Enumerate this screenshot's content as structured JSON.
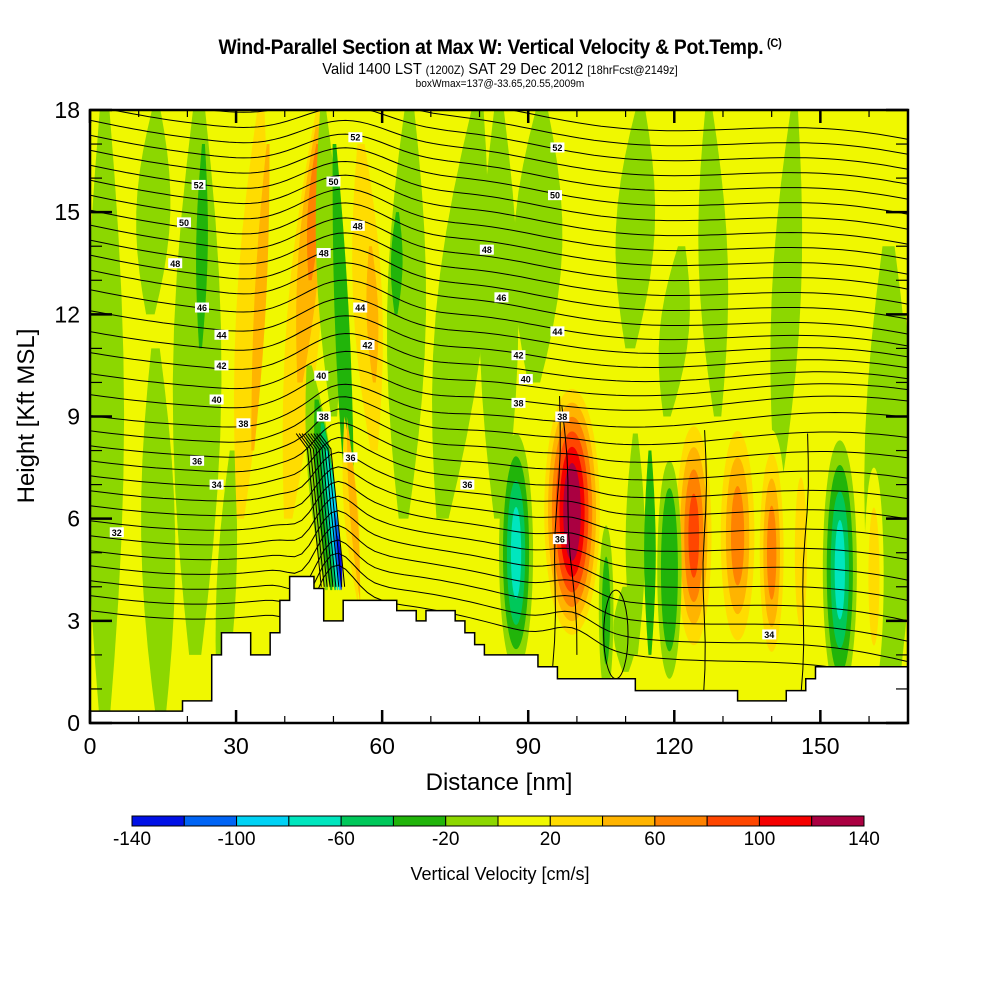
{
  "header": {
    "title": "Wind-Parallel Section at Max W: Vertical Velocity & Pot.Temp.",
    "copyright": "(C)",
    "valid_prefix": "Valid 1400 LST",
    "valid_utc": "(1200Z)",
    "valid_date": "SAT 29 Dec 2012",
    "forecast": "[18hrFcst@2149z]",
    "box_info": "boxWmax=137@-33.65,20.55,2009m"
  },
  "chart_data": {
    "type": "contour",
    "title": "Wind-Parallel Section at Max W: Vertical Velocity & Pot.Temp.",
    "xlabel": "Distance [nm]",
    "ylabel": "Height [Kft MSL]",
    "xlim": [
      0,
      168
    ],
    "ylim": [
      0,
      18
    ],
    "x_ticks": [
      0,
      30,
      60,
      90,
      120,
      150
    ],
    "x_minor_step": 10,
    "y_ticks": [
      0,
      3,
      6,
      9,
      12,
      15,
      18
    ],
    "y_minor_step": 1,
    "colorbar": {
      "title": "Vertical Velocity [cm/s]",
      "levels": [
        -140,
        -120,
        -100,
        -80,
        -60,
        -40,
        -20,
        0,
        20,
        40,
        60,
        80,
        100,
        120,
        140
      ],
      "tick_labels": [
        "-140",
        "-100",
        "-60",
        "-20",
        "20",
        "60",
        "100",
        "140"
      ],
      "colors": [
        "#0010e6",
        "#0064f5",
        "#00d2f5",
        "#00e6be",
        "#00c85a",
        "#21b40a",
        "#8cd700",
        "#f0f800",
        "#ffdc00",
        "#ffb400",
        "#ff8200",
        "#ff4600",
        "#f50000",
        "#aa0041"
      ],
      "placement": "bottom"
    },
    "filled_field": {
      "name": "Vertical Velocity",
      "units": "cm/s",
      "max_value": 137,
      "max_location_nm": 99,
      "max_height_kft": 6.5,
      "features": [
        {
          "kind": "updraft",
          "center_nm": 99,
          "height_kft": 6.5,
          "peak_cms": 137
        },
        {
          "kind": "downdraft",
          "center_nm": 51,
          "height_kft": 5,
          "peak_cms": -140
        },
        {
          "kind": "updraft",
          "center_nm": 47,
          "height_kft": 15,
          "peak_cms": 70
        },
        {
          "kind": "updraft",
          "center_nm": 124,
          "height_kft": 5.5,
          "peak_cms": 90
        },
        {
          "kind": "updraft",
          "center_nm": 133,
          "height_kft": 5.5,
          "peak_cms": 70
        },
        {
          "kind": "downdraft",
          "center_nm": 154,
          "height_kft": 4.5,
          "peak_cms": -60
        },
        {
          "kind": "downdraft",
          "center_nm": 87,
          "height_kft": 5,
          "peak_cms": -60
        }
      ]
    },
    "contour_lines": {
      "name": "Potential Temperature",
      "labels": [
        "32",
        "34",
        "36",
        "38",
        "40",
        "42",
        "44",
        "46",
        "48",
        "50",
        "52"
      ],
      "interval": 1
    },
    "terrain_kft": [
      [
        0,
        0.35
      ],
      [
        19,
        0.35
      ],
      [
        19,
        0.65
      ],
      [
        25,
        0.65
      ],
      [
        25,
        2.0
      ],
      [
        27,
        2.0
      ],
      [
        27,
        2.65
      ],
      [
        33,
        2.65
      ],
      [
        33,
        2.0
      ],
      [
        37,
        2.0
      ],
      [
        37,
        2.65
      ],
      [
        39,
        2.65
      ],
      [
        39,
        3.6
      ],
      [
        41,
        3.6
      ],
      [
        41,
        4.3
      ],
      [
        46,
        4.3
      ],
      [
        46,
        3.95
      ],
      [
        48,
        3.95
      ],
      [
        48,
        3.0
      ],
      [
        52,
        3.0
      ],
      [
        52,
        3.6
      ],
      [
        63,
        3.6
      ],
      [
        63,
        3.3
      ],
      [
        67,
        3.3
      ],
      [
        67,
        3.0
      ],
      [
        69,
        3.0
      ],
      [
        69,
        3.3
      ],
      [
        75,
        3.3
      ],
      [
        75,
        3.0
      ],
      [
        77,
        3.0
      ],
      [
        77,
        2.65
      ],
      [
        79,
        2.65
      ],
      [
        79,
        2.3
      ],
      [
        81,
        2.3
      ],
      [
        81,
        2.0
      ],
      [
        92,
        2.0
      ],
      [
        92,
        1.65
      ],
      [
        96,
        1.65
      ],
      [
        96,
        1.3
      ],
      [
        112,
        1.3
      ],
      [
        112,
        0.95
      ],
      [
        133,
        0.95
      ],
      [
        133,
        0.65
      ],
      [
        143,
        0.65
      ],
      [
        143,
        0.95
      ],
      [
        147,
        0.95
      ],
      [
        147,
        1.3
      ],
      [
        149,
        1.3
      ],
      [
        149,
        1.65
      ],
      [
        168,
        1.65
      ]
    ]
  }
}
